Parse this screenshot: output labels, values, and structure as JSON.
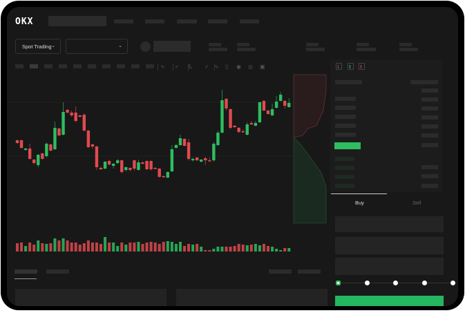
{
  "header": {
    "logo": "OKX"
  },
  "selector": {
    "market_type": "Spot Trading",
    "pair_value": ""
  },
  "trade_form": {
    "buy_tab": "Buy",
    "sell_tab": "Sell",
    "active_tab": "Buy",
    "slider_percent": 0,
    "slider_stops": [
      0,
      25,
      50,
      75,
      100
    ]
  },
  "colors": {
    "up": "#2ebd5f",
    "down": "#df4a4f",
    "background": "#181818",
    "placeholder": "#2b2b2b"
  },
  "chart": {
    "type": "candlestick",
    "candles": [
      [
        97,
        98,
        92,
        93
      ],
      [
        97,
        98,
        85,
        86
      ],
      [
        83,
        86,
        82,
        85
      ],
      [
        85,
        92,
        69,
        70
      ],
      [
        69,
        70,
        62,
        64
      ],
      [
        61,
        77,
        58,
        76
      ],
      [
        78,
        79,
        69,
        70
      ],
      [
        74,
        94,
        72,
        92
      ],
      [
        91,
        92,
        81,
        82
      ],
      [
        84,
        124,
        83,
        115
      ],
      [
        114,
        115,
        103,
        104
      ],
      [
        105,
        152,
        104,
        138
      ],
      [
        141,
        142,
        136,
        137
      ],
      [
        137,
        140,
        131,
        133
      ],
      [
        137,
        146,
        123,
        125
      ],
      [
        133,
        134,
        130,
        131
      ],
      [
        134,
        136,
        110,
        111
      ],
      [
        111,
        112,
        86,
        87
      ],
      [
        91,
        92,
        85,
        88
      ],
      [
        88,
        89,
        54,
        58
      ],
      [
        57,
        59,
        54,
        55
      ],
      [
        56,
        67,
        55,
        66
      ],
      [
        67,
        69,
        60,
        62
      ],
      [
        60,
        64,
        56,
        63
      ],
      [
        64,
        70,
        63,
        68
      ],
      [
        68,
        69,
        49,
        51
      ],
      [
        54,
        59,
        52,
        58
      ],
      [
        57,
        58,
        52,
        54
      ],
      [
        68,
        69,
        53,
        56
      ],
      [
        54,
        69,
        53,
        65
      ],
      [
        65,
        66,
        62,
        63
      ],
      [
        67,
        68,
        54,
        55
      ],
      [
        67,
        68,
        53,
        55
      ],
      [
        57,
        58,
        55,
        56
      ],
      [
        56,
        57,
        43,
        44
      ],
      [
        45,
        46,
        43,
        44
      ],
      [
        43,
        52,
        42,
        51
      ],
      [
        52,
        90,
        51,
        84
      ],
      [
        86,
        92,
        85,
        90
      ],
      [
        90,
        105,
        89,
        100
      ],
      [
        99,
        100,
        88,
        89
      ],
      [
        94,
        99,
        68,
        70
      ],
      [
        68,
        72,
        66,
        70
      ],
      [
        72,
        73,
        67,
        68
      ],
      [
        66,
        70,
        65,
        69
      ],
      [
        71,
        73,
        61,
        68
      ],
      [
        68,
        72,
        66,
        67
      ],
      [
        68,
        94,
        66,
        92
      ],
      [
        90,
        111,
        89,
        108
      ],
      [
        108,
        170,
        107,
        155
      ],
      [
        157,
        158,
        140,
        143
      ],
      [
        142,
        143,
        113,
        115
      ],
      [
        118,
        119,
        115,
        116
      ],
      [
        115,
        116,
        107,
        109
      ],
      [
        110,
        113,
        108,
        109
      ],
      [
        105,
        123,
        104,
        120
      ],
      [
        122,
        125,
        119,
        120
      ],
      [
        118,
        125,
        117,
        122
      ],
      [
        123,
        153,
        122,
        152
      ],
      [
        154,
        155,
        139,
        140
      ],
      [
        140,
        141,
        134,
        135
      ],
      [
        133,
        150,
        132,
        142
      ],
      [
        144,
        161,
        143,
        153
      ],
      [
        154,
        167,
        153,
        163
      ],
      [
        154,
        155,
        143,
        147
      ],
      [
        145,
        158,
        144,
        151
      ]
    ],
    "volume": [
      12,
      13,
      8,
      13,
      10,
      16,
      12,
      11,
      12,
      19,
      16,
      19,
      16,
      13,
      13,
      10,
      12,
      16,
      13,
      13,
      11,
      21,
      13,
      13,
      8,
      13,
      10,
      13,
      13,
      14,
      11,
      13,
      14,
      13,
      11,
      14,
      15,
      14,
      11,
      14,
      8,
      11,
      10,
      11,
      7,
      2,
      2,
      4,
      7,
      7,
      7,
      7,
      8,
      11,
      10,
      9,
      10,
      11,
      9,
      11,
      8,
      7,
      4,
      2,
      5,
      5
    ]
  }
}
